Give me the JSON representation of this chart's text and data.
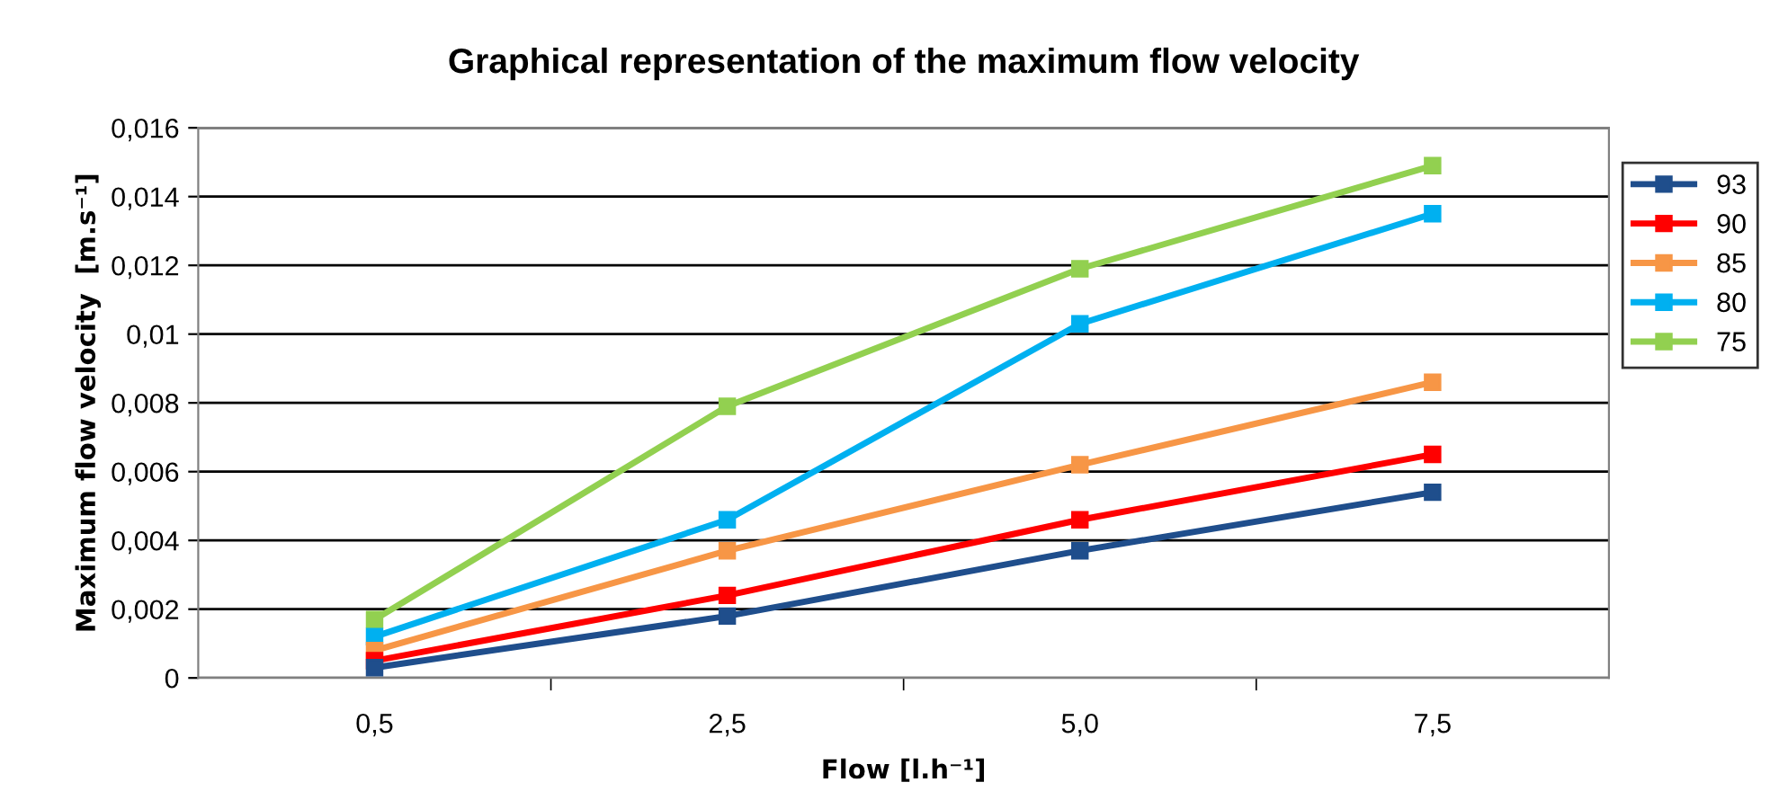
{
  "chart_data": {
    "type": "line",
    "title": "Graphical representation of the maximum flow velocity",
    "xlabel": "Flow [l.h⁻¹]",
    "ylabel": "Maximum flow velocity  [m.s⁻¹]",
    "categories": [
      "0,5",
      "2,5",
      "5,0",
      "7,5"
    ],
    "series": [
      {
        "name": "93",
        "color": "#1f4e8c",
        "values": [
          0.0003,
          0.0018,
          0.0037,
          0.0054
        ]
      },
      {
        "name": "90",
        "color": "#ff0000",
        "values": [
          0.0005,
          0.0024,
          0.0046,
          0.0065
        ]
      },
      {
        "name": "85",
        "color": "#f79646",
        "values": [
          0.0008,
          0.0037,
          0.0062,
          0.0086
        ]
      },
      {
        "name": "80",
        "color": "#00b0f0",
        "values": [
          0.0012,
          0.0046,
          0.0103,
          0.0135
        ]
      },
      {
        "name": "75",
        "color": "#92d050",
        "values": [
          0.0017,
          0.0079,
          0.0119,
          0.0149
        ]
      }
    ],
    "ylim": [
      0,
      0.016
    ],
    "yticks": [
      0,
      {
        "value": 0.002,
        "label": "0,002"
      },
      {
        "value": 0.004,
        "label": "0,004"
      },
      {
        "value": 0.006,
        "label": "0,006"
      },
      {
        "value": 0.008,
        "label": "0,008"
      },
      {
        "value": 0.01,
        "label": "0,01"
      },
      {
        "value": 0.012,
        "label": "0,012"
      },
      {
        "value": 0.014,
        "label": "0,014"
      },
      {
        "value": 0.016,
        "label": "0,016"
      }
    ],
    "grid": "y",
    "legend": "right",
    "marker": "square",
    "line_style": "solid"
  }
}
